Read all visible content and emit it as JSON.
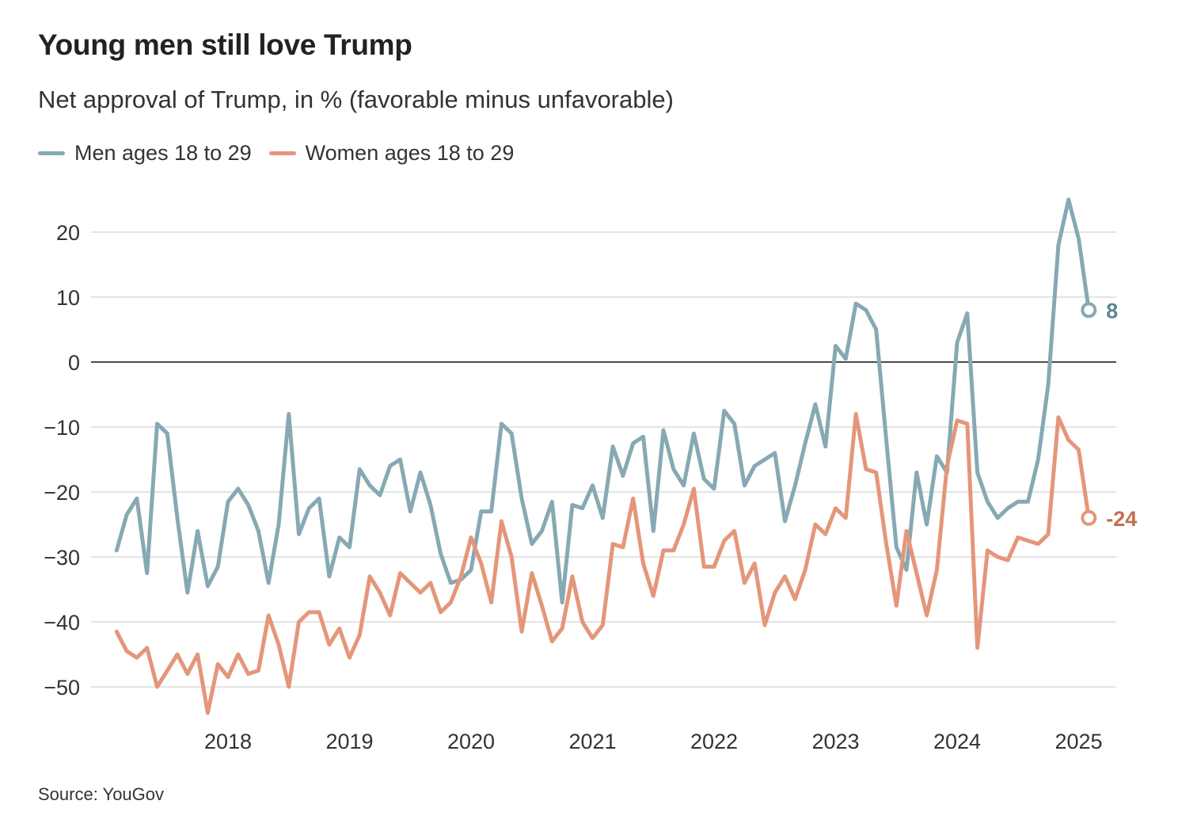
{
  "title": "Young men still love Trump",
  "subtitle": "Net approval of Trump, in % (favorable minus unfavorable)",
  "source": "Source: YouGov",
  "chart_data": {
    "type": "line",
    "title": "Young men still love Trump",
    "subtitle": "Net approval of Trump, in % (favorable minus unfavorable)",
    "xlabel": "",
    "ylabel": "",
    "ylim": [
      -55,
      27
    ],
    "yticks": [
      20,
      10,
      0,
      -10,
      -20,
      -30,
      -40,
      -50
    ],
    "ytick_labels": [
      "20",
      "10",
      "0",
      "−10",
      "−20",
      "−30",
      "−40",
      "−50"
    ],
    "xtick_labels": [
      "2018",
      "2019",
      "2020",
      "2021",
      "2022",
      "2023",
      "2024",
      "2025"
    ],
    "grid": true,
    "legend": "top-left",
    "x": [
      "2017-02",
      "2017-03",
      "2017-04",
      "2017-05",
      "2017-06",
      "2017-07",
      "2017-08",
      "2017-09",
      "2017-10",
      "2017-11",
      "2017-12",
      "2018-01",
      "2018-02",
      "2018-03",
      "2018-04",
      "2018-05",
      "2018-06",
      "2018-07",
      "2018-08",
      "2018-09",
      "2018-10",
      "2018-11",
      "2018-12",
      "2019-01",
      "2019-02",
      "2019-03",
      "2019-04",
      "2019-05",
      "2019-06",
      "2019-07",
      "2019-08",
      "2019-09",
      "2019-10",
      "2019-11",
      "2019-12",
      "2020-01",
      "2020-02",
      "2020-03",
      "2020-04",
      "2020-05",
      "2020-06",
      "2020-07",
      "2020-08",
      "2020-09",
      "2020-10",
      "2020-11",
      "2020-12",
      "2021-01",
      "2021-02",
      "2021-03",
      "2021-04",
      "2021-05",
      "2021-06",
      "2021-07",
      "2021-08",
      "2021-09",
      "2021-10",
      "2021-11",
      "2021-12",
      "2022-01",
      "2022-02",
      "2022-03",
      "2022-04",
      "2022-05",
      "2022-06",
      "2022-07",
      "2022-08",
      "2022-09",
      "2022-10",
      "2022-11",
      "2022-12",
      "2023-01",
      "2023-02",
      "2023-03",
      "2023-04",
      "2023-05",
      "2023-06",
      "2023-07",
      "2023-08",
      "2023-09",
      "2023-10",
      "2023-11",
      "2023-12",
      "2024-01",
      "2024-02",
      "2024-03",
      "2024-04",
      "2024-05",
      "2024-06",
      "2024-07",
      "2024-08",
      "2024-09",
      "2024-10",
      "2024-11",
      "2024-12",
      "2025-01",
      "2025-02"
    ],
    "series": [
      {
        "name": "Men ages 18 to 29",
        "color": "#86a9b3",
        "label_color": "#5f8793",
        "end_label": "8",
        "values": [
          -29,
          -23.5,
          -21,
          -32.5,
          -9.5,
          -11,
          -24,
          -35.5,
          -26,
          -34.5,
          -31.5,
          -21.5,
          -19.5,
          -22,
          -26,
          -34,
          -25,
          -8,
          -26.5,
          -22.5,
          -21,
          -33,
          -27,
          -28.5,
          -16.5,
          -19,
          -20.5,
          -16,
          -15,
          -23,
          -17,
          -22,
          -29.5,
          -34,
          -33.5,
          -32,
          -23,
          -23,
          -9.5,
          -11,
          -21,
          -28,
          -26,
          -21.5,
          -37,
          -22,
          -22.5,
          -19,
          -24,
          -13,
          -17.5,
          -12.5,
          -11.5,
          -26,
          -10.5,
          -16.5,
          -19,
          -11,
          -18,
          -19.5,
          -7.5,
          -9.5,
          -19,
          -16,
          -15,
          -14,
          -24.5,
          -19,
          -12.5,
          -6.5,
          -13,
          2.5,
          0.5,
          9,
          8,
          5,
          -12,
          -28.5,
          -32,
          -17,
          -25,
          -14.5,
          -17,
          3,
          7.5,
          -17,
          -21.5,
          -24,
          -22.5,
          -21.5,
          -21.5,
          -15,
          -3.5,
          18,
          25,
          19,
          8
        ]
      },
      {
        "name": "Women ages 18 to 29",
        "color": "#e4967a",
        "label_color": "#c26f4e",
        "end_label": "-24",
        "values": [
          -41.5,
          -44.5,
          -45.5,
          -44,
          -50,
          -47.5,
          -45,
          -48,
          -45,
          -54,
          -46.5,
          -48.5,
          -45,
          -48,
          -47.5,
          -39,
          -43.5,
          -50,
          -40,
          -38.5,
          -38.5,
          -43.5,
          -41,
          -45.5,
          -42,
          -33,
          -35.5,
          -39,
          -32.5,
          -34,
          -35.5,
          -34,
          -38.5,
          -37,
          -33,
          -27,
          -31,
          -37,
          -24.5,
          -30,
          -41.5,
          -32.5,
          -37.5,
          -43,
          -41,
          -33,
          -40,
          -42.5,
          -40.5,
          -28,
          -28.5,
          -21,
          -31,
          -36,
          -29,
          -29,
          -25,
          -19.5,
          -31.5,
          -31.5,
          -27.5,
          -26,
          -34,
          -31,
          -40.5,
          -35.5,
          -33,
          -36.5,
          -32,
          -25,
          -26.5,
          -22.5,
          -24,
          -8,
          -16.5,
          -17,
          -28,
          -37.5,
          -26,
          -32.5,
          -39,
          -32,
          -16,
          -9,
          -9.5,
          -44,
          -29,
          -30,
          -30.5,
          -27,
          -27.5,
          -28,
          -26.5,
          -8.5,
          -12,
          -13.5,
          -24
        ]
      }
    ]
  }
}
